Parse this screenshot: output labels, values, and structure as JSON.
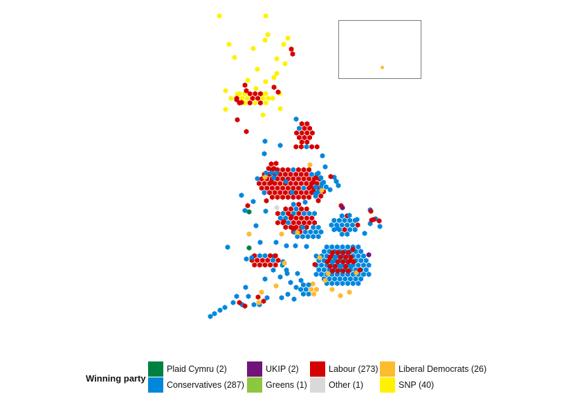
{
  "legend": {
    "title": "Winning party",
    "items": [
      {
        "label": "Plaid Cymru (2)",
        "color": "#008142"
      },
      {
        "label": "Conservatives (287)",
        "color": "#0087dc"
      },
      {
        "label": "UKIP (2)",
        "color": "#70147a"
      },
      {
        "label": "Greens (1)",
        "color": "#8dc63f"
      },
      {
        "label": "Labour (273)",
        "color": "#d50000"
      },
      {
        "label": "Other (1)",
        "color": "#d9d9d9"
      },
      {
        "label": "Liberal Democrats (26)",
        "color": "#fdbb30"
      },
      {
        "label": "SNP (40)",
        "color": "#fff200"
      }
    ]
  },
  "inset": {
    "seat_color": "#fdbb30"
  }
}
